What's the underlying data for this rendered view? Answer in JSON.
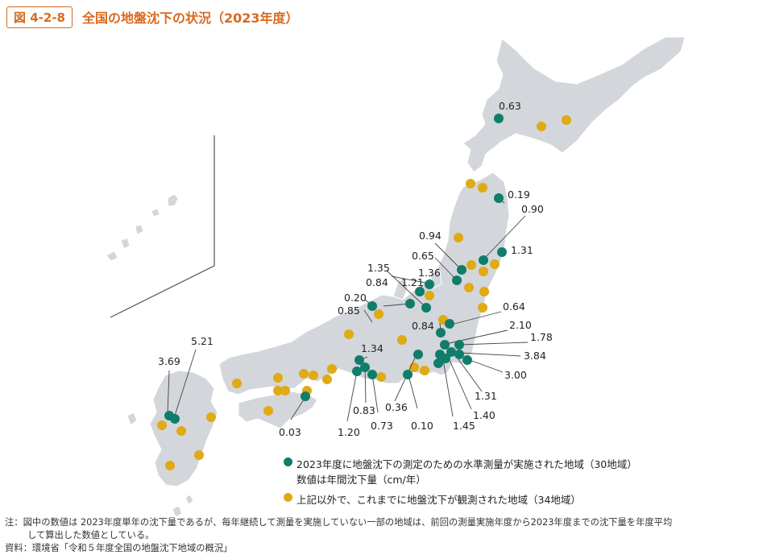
{
  "header": {
    "figure_number": "図 4-2-8",
    "title": "全国の地盤沈下の状況（2023年度）"
  },
  "colors": {
    "measured": "#0f7d6a",
    "observed": "#e0aa14",
    "land": "#d3d6da",
    "accent": "#d86a1f"
  },
  "legend": {
    "measured_line1": "2023年度に地盤沈下の測定のための水準測量が実施された地域（30地域）",
    "measured_line2": "数値は年間沈下量（cm/年）",
    "observed_line1": "上記以外で、これまでに地盤沈下が観測された地域（34地域）"
  },
  "values": {
    "hokkaido": "0.63",
    "v019": "0.19",
    "v090": "0.90",
    "v131a": "1.31",
    "v094": "0.94",
    "v065": "0.65",
    "v136": "1.36",
    "v135": "1.35",
    "v121": "1.21",
    "v084a": "0.84",
    "v020": "0.20",
    "v085": "0.85",
    "v064": "0.64",
    "v084b": "0.84",
    "v210": "2.10",
    "v178": "1.78",
    "v384": "3.84",
    "v300": "3.00",
    "v131b": "1.31",
    "v140": "1.40",
    "v145": "1.45",
    "v134": "1.34",
    "v036": "0.36",
    "v083": "0.83",
    "v073": "0.73",
    "v010": "0.10",
    "v120": "1.20",
    "v003": "0.03",
    "v521": "5.21",
    "v369": "3.69"
  },
  "notes": {
    "note_line1": "注：図中の数値は 2023年度単年の沈下量であるが、毎年継続して測量を実施していない一部の地域は、前回の測量実施年度から2023年度までの沈下量を年度平均",
    "note_line2": "して算出した数値としている。",
    "source": "資料：環境省「令和５年度全国の地盤沈下地域の概況」"
  }
}
